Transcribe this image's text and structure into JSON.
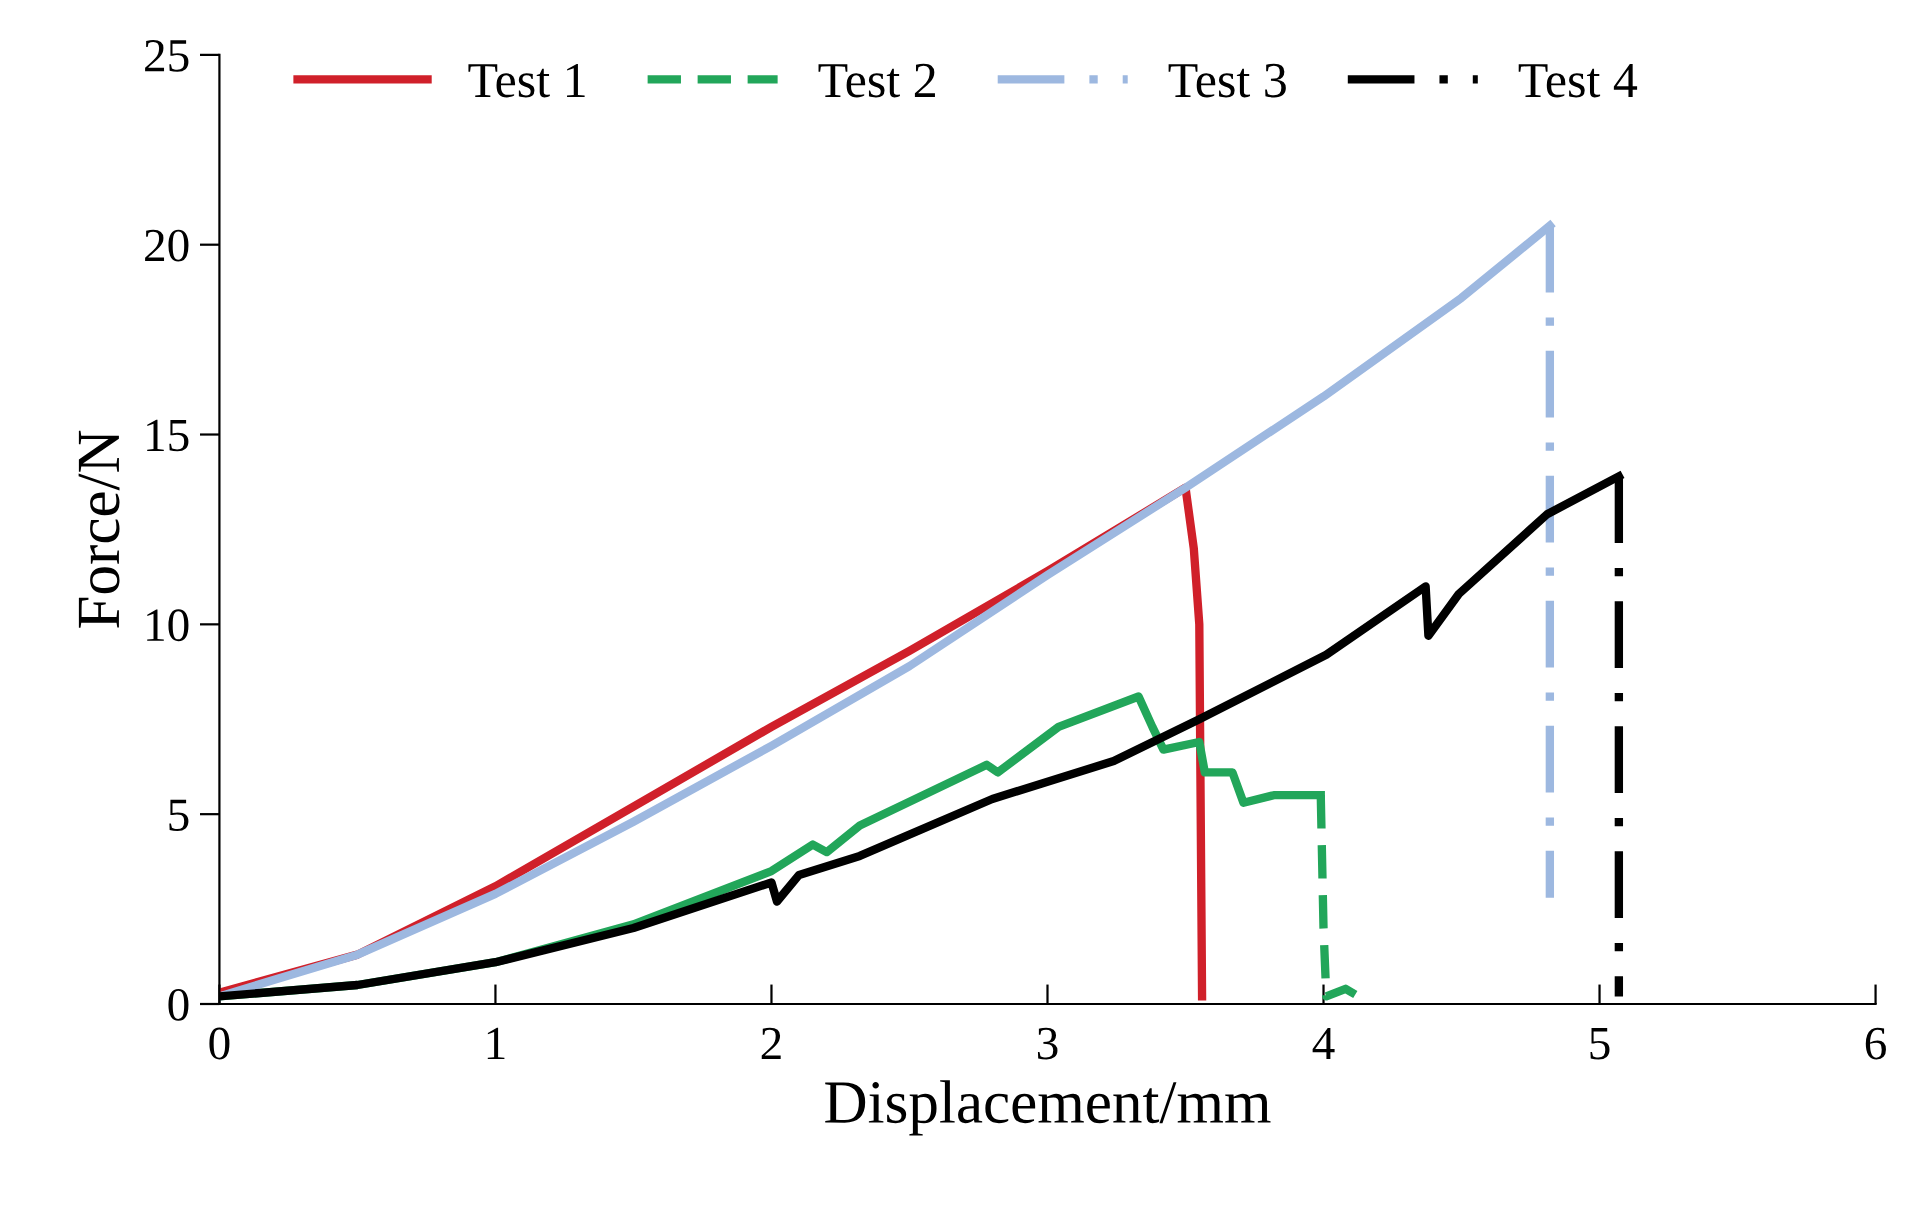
{
  "chart_data": {
    "type": "line",
    "xlabel": "Displacement/mm",
    "ylabel": "Force/N",
    "xlim": [
      0,
      6
    ],
    "xticks": [
      0,
      1,
      2,
      3,
      4,
      5,
      6
    ],
    "ylim": [
      0,
      25
    ],
    "yticks": [
      0,
      5,
      10,
      15,
      20,
      25
    ],
    "grid": false,
    "legend": "top left",
    "series": [
      {
        "name": "Test 1",
        "color": "#d0202a",
        "line_style": "solid",
        "x": [
          0,
          0.5,
          1,
          1.5,
          2,
          2.5,
          3,
          3.5,
          3.53,
          3.55,
          3.56
        ],
        "values": [
          0.3,
          1.3,
          3.1,
          5.2,
          7.3,
          9.3,
          11.4,
          13.6,
          12.0,
          10.0,
          0.2
        ]
      },
      {
        "name": "Test 2",
        "color": "#22a65a",
        "line_style": "solid",
        "x": [
          0,
          0.5,
          1,
          1.5,
          2,
          2.15,
          2.2,
          2.32,
          2.78,
          2.82,
          3.04,
          3.33,
          3.38,
          3.42,
          3.55,
          3.57,
          3.67,
          3.71,
          3.82,
          3.99
        ],
        "values": [
          0.2,
          0.5,
          1.1,
          2.1,
          3.5,
          4.2,
          4.0,
          4.7,
          6.3,
          6.1,
          7.3,
          8.1,
          7.3,
          6.7,
          6.9,
          6.1,
          6.1,
          5.3,
          5.5,
          5.5
        ]
      },
      {
        "color": "#22a65a",
        "line_style": "dashed",
        "x": [
          3.99,
          4.0,
          4.01,
          4.08,
          4.15
        ],
        "values": [
          5.5,
          2.0,
          0.2,
          0.4,
          0.1
        ]
      },
      {
        "name": "Test 3",
        "color": "#9db8e0",
        "line_style": "solid",
        "x": [
          0,
          0.5,
          1,
          1.5,
          2,
          2.5,
          3,
          3.5,
          4,
          4.5,
          4.82
        ],
        "values": [
          0.2,
          1.3,
          2.9,
          4.8,
          6.8,
          8.9,
          11.3,
          13.6,
          16.0,
          18.6,
          20.5
        ]
      },
      {
        "color": "#9db8e0",
        "line_style": "dashdot",
        "x": [
          4.82,
          4.82
        ],
        "values": [
          20.5,
          2.8
        ]
      },
      {
        "name": "Test 4",
        "color": "#000000",
        "line_style": "solid",
        "x": [
          0,
          0.5,
          1,
          1.5,
          2.0,
          2.02,
          2.1,
          2.32,
          2.8,
          3.24,
          3.55,
          4.01,
          4.37,
          4.38,
          4.49,
          4.81,
          5.07
        ],
        "values": [
          0.2,
          0.5,
          1.1,
          2.0,
          3.2,
          2.7,
          3.4,
          3.9,
          5.4,
          6.4,
          7.5,
          9.2,
          11.0,
          9.7,
          10.8,
          12.9,
          13.9
        ]
      },
      {
        "color": "#000000",
        "line_style": "dashdot",
        "x": [
          5.07,
          5.07
        ],
        "values": [
          13.9,
          0.2
        ]
      }
    ]
  }
}
